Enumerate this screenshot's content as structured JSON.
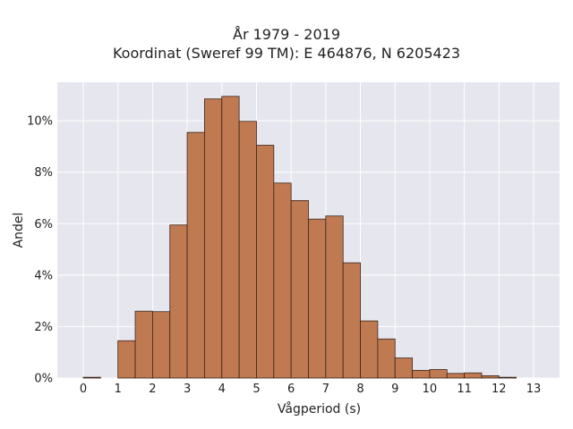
{
  "chart_data": {
    "type": "bar",
    "title": "År 1979 - 2019",
    "subtitle": "Koordinat (Sweref 99 TM): E 464876, N 6205423",
    "xlabel": "Vågperiod (s)",
    "ylabel": "Andel",
    "bin_width": 0.5,
    "bins_start": [
      0,
      1,
      1.5,
      2,
      2.5,
      3,
      3.5,
      4,
      4.5,
      5,
      5.5,
      6,
      6.5,
      7,
      7.5,
      8,
      8.5,
      9,
      9.5,
      10,
      10.5,
      11,
      11.5,
      12
    ],
    "values": [
      0.03,
      1.45,
      2.6,
      2.58,
      5.95,
      9.55,
      10.85,
      10.95,
      9.98,
      9.05,
      7.58,
      6.9,
      6.18,
      6.3,
      4.48,
      2.22,
      1.52,
      0.78,
      0.3,
      0.33,
      0.18,
      0.2,
      0.09,
      0.03
    ],
    "xticks": [
      "0",
      "1",
      "2",
      "3",
      "4",
      "5",
      "6",
      "7",
      "8",
      "9",
      "10",
      "11",
      "12",
      "13"
    ],
    "yticks": [
      "0%",
      "2%",
      "4%",
      "6%",
      "8%",
      "10%"
    ],
    "xlim": [
      -0.75,
      13.75
    ],
    "ylim": [
      0,
      11.5
    ],
    "grid": true,
    "colors": {
      "bar_fill": "#c07a52",
      "bar_edge": "#3a2418",
      "plot_bg": "#e6e6ef",
      "grid": "#ffffff"
    }
  }
}
